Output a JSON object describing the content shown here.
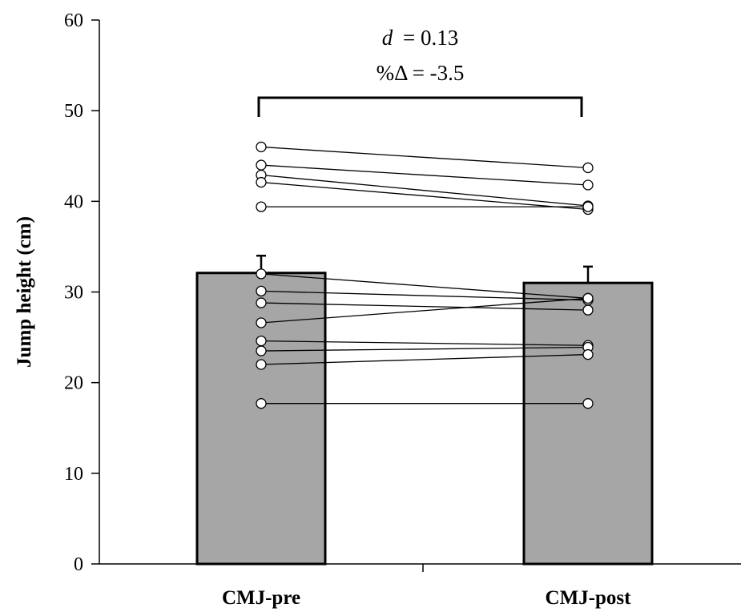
{
  "chart_data": {
    "type": "bar",
    "categories": [
      "CMJ-pre",
      "CMJ-post"
    ],
    "values": [
      32.1,
      31.0
    ],
    "error_bars": [
      1.9,
      1.8
    ],
    "ylabel": "Jump height (cm)",
    "xlabel": "",
    "ylim": [
      0,
      60
    ],
    "yticks": [
      0,
      10,
      20,
      30,
      40,
      50,
      60
    ],
    "grid": false,
    "colors": {
      "bar": "#a6a6a6",
      "bar_edge": "#000000",
      "point_fill": "#ffffff",
      "line": "#000000"
    },
    "individual_pairs": [
      [
        46.0,
        43.7
      ],
      [
        44.0,
        41.8
      ],
      [
        42.9,
        39.5
      ],
      [
        42.1,
        39.1
      ],
      [
        39.4,
        39.4
      ],
      [
        32.0,
        29.3
      ],
      [
        30.1,
        29.1
      ],
      [
        28.8,
        28.0
      ],
      [
        26.6,
        29.3
      ],
      [
        24.6,
        24.1
      ],
      [
        23.5,
        23.9
      ],
      [
        22.0,
        23.1
      ],
      [
        17.7,
        17.7
      ]
    ],
    "annotation": {
      "effect_symbol": "d",
      "effect_value": "= 0.13",
      "percent_change": "%Δ = -3.5"
    }
  }
}
